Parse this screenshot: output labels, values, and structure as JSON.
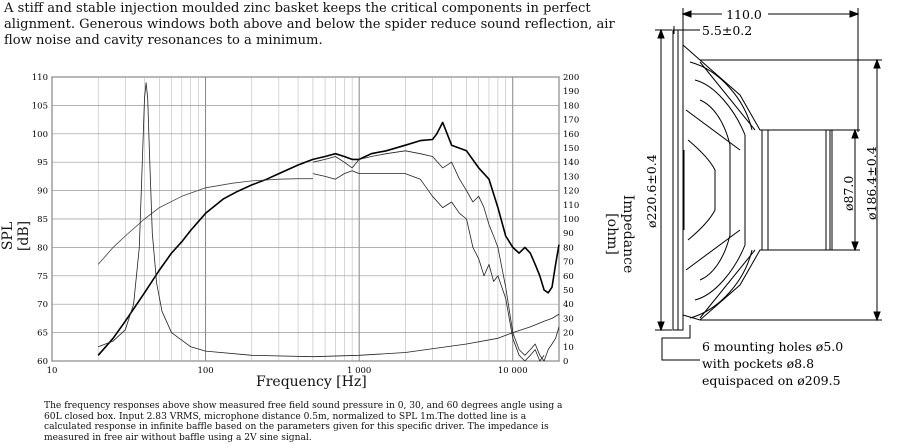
{
  "description": "A stiff and stable injection moulded zinc basket keeps the critical components in perfect alignment. Generous windows both above and below the spider reduce sound reflection, air flow noise and cavity resonances to a minimum.",
  "caption": "The frequency responses above show measured free field sound pressure in 0, 30, and 60 degrees angle using a 60L closed box. Input 2.83 VRMS, microphone distance 0.5m, normalized to SPL 1m.The dotted line is a calculated response in infinite baffle based on the parameters given for this specific driver. The impedance is measured in free air without baffle using a 2V sine signal.",
  "chart_data": {
    "type": "line",
    "xlabel": "Frequency [Hz]",
    "ylabel": "SPL [dB]",
    "y2label": "Impedance [ohm]",
    "xscale": "log",
    "xlim": [
      10,
      20000
    ],
    "ylim": [
      60,
      110
    ],
    "y2lim": [
      0,
      200
    ],
    "x_tick_labels": [
      "10",
      "100",
      "1 000",
      "10 000"
    ],
    "y_ticks": [
      60,
      65,
      70,
      75,
      80,
      85,
      90,
      95,
      100,
      105,
      110
    ],
    "y2_ticks": [
      0,
      10,
      20,
      30,
      40,
      50,
      60,
      70,
      80,
      90,
      100,
      110,
      120,
      130,
      140,
      150,
      160,
      170,
      180,
      190,
      200
    ],
    "grid": true,
    "series": [
      {
        "axis": "left",
        "width": 1.6,
        "color": "#000",
        "x": [
          20,
          25,
          30,
          40,
          50,
          60,
          70,
          80,
          100,
          130,
          160,
          200,
          250,
          300,
          400,
          500,
          600,
          700,
          800,
          900,
          1000,
          1200,
          1500,
          2000,
          2500,
          3000,
          3200,
          3500,
          4000,
          5000,
          6000,
          7000,
          8000,
          9000,
          10000,
          11000,
          12000,
          13000,
          14000,
          15000,
          16000,
          17000,
          18000,
          19000,
          20000
        ],
        "y": [
          61,
          64,
          67,
          72,
          76,
          79,
          81,
          83,
          86,
          88.5,
          89.8,
          91,
          92,
          93,
          94.5,
          95.5,
          96,
          96.5,
          96,
          95.5,
          95.5,
          96.5,
          97,
          98,
          98.8,
          99,
          100,
          102,
          98,
          97,
          94,
          92,
          87,
          82,
          80,
          79,
          80,
          79,
          77,
          75,
          72.5,
          72,
          73,
          77,
          80.5
        ]
      },
      {
        "axis": "left",
        "width": 0.8,
        "color": "#222",
        "x": [
          500,
          600,
          700,
          800,
          900,
          1000,
          1200,
          1500,
          2000,
          2500,
          3000,
          3500,
          4000,
          4500,
          5000,
          5500,
          6000,
          6500,
          7000,
          7500,
          8000,
          9000,
          10000,
          11000,
          12000,
          13000,
          14000,
          15000,
          16000,
          17000,
          18000,
          19000,
          20000
        ],
        "y": [
          95,
          95.5,
          96,
          95,
          94,
          95.5,
          96,
          96.5,
          97,
          96.5,
          96,
          94,
          95,
          92,
          90,
          88,
          89,
          87,
          84,
          82,
          80,
          73,
          65,
          62,
          61,
          62,
          63,
          61,
          60,
          62,
          63,
          64,
          66
        ]
      },
      {
        "axis": "left",
        "width": 0.8,
        "color": "#222",
        "x": [
          500,
          600,
          700,
          800,
          900,
          1000,
          1200,
          1500,
          2000,
          2500,
          3000,
          3500,
          4000,
          4500,
          5000,
          5500,
          6000,
          6500,
          7000,
          7500,
          8000,
          9000,
          10000,
          11000,
          12000,
          13000,
          14000,
          15000,
          16000
        ],
        "y": [
          93,
          92.5,
          92,
          93,
          93.5,
          93,
          93,
          93,
          93,
          92,
          89,
          87,
          88,
          86,
          85,
          80,
          78,
          75,
          77,
          74,
          75,
          71,
          64,
          61,
          60,
          61,
          62,
          60,
          61
        ]
      },
      {
        "axis": "left",
        "width": 0.8,
        "color": "#444",
        "x": [
          20,
          25,
          30,
          40,
          50,
          70,
          100,
          150,
          200,
          300,
          400,
          500
        ],
        "y": [
          77,
          80,
          82,
          85,
          87,
          89,
          90.5,
          91.3,
          91.7,
          92,
          92.1,
          92.1
        ]
      },
      {
        "axis": "right",
        "width": 0.8,
        "color": "#222",
        "x": [
          20,
          25,
          30,
          34,
          37,
          39,
          40,
          41,
          42,
          43,
          45,
          48,
          52,
          60,
          80,
          100,
          200,
          500,
          1000,
          2000,
          5000,
          8000,
          10000,
          13000,
          16000,
          18000,
          20000
        ],
        "y": [
          10,
          14,
          22,
          40,
          80,
          150,
          185,
          196,
          185,
          150,
          90,
          55,
          35,
          20,
          10,
          7,
          4,
          3,
          4,
          6,
          12,
          16,
          20,
          24,
          28,
          30,
          33
        ]
      }
    ]
  },
  "drawing": {
    "dims": {
      "depth": "110.0",
      "flange": "5.5±0.2",
      "outer": "ø220.6±0.4",
      "magnet": "ø87.0",
      "cutout": "ø186.4±0.4"
    },
    "note": [
      "6 mounting holes ø5.0",
      "with pockets ø8.8",
      "equispaced on ø209.5"
    ]
  }
}
